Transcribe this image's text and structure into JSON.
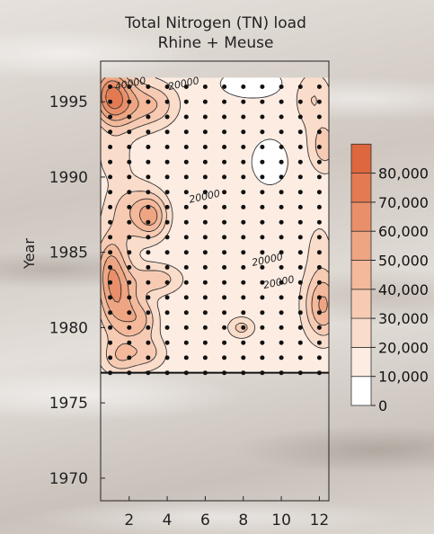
{
  "chart_data": {
    "type": "heatmap",
    "title": "Total Nitrogen (TN) load",
    "subtitle": "Rhine + Meuse",
    "xlabel": "",
    "ylabel": "Year",
    "x_ticks": [
      "2",
      "4",
      "6",
      "8",
      "10",
      "12"
    ],
    "y_ticks": [
      "1970",
      "1975",
      "1980",
      "1985",
      "1990",
      "1995"
    ],
    "xlim": [
      0.5,
      12.5
    ],
    "ylim": [
      1968.5,
      1997.7
    ],
    "data_ylim": [
      1977,
      1996.6
    ],
    "colorbar": {
      "ticks": [
        "0",
        "10,000",
        "20,000",
        "30,000",
        "40,000",
        "50,000",
        "60,000",
        "70,000",
        "80,000"
      ],
      "levels": [
        0,
        10000,
        20000,
        30000,
        40000,
        50000,
        60000,
        70000,
        80000,
        90000
      ],
      "colors": [
        "#ffffff",
        "#fcece2",
        "#fadccb",
        "#f7cbb3",
        "#f3b99a",
        "#eea582",
        "#e98f69",
        "#e47a52",
        "#de673e"
      ]
    },
    "contour_labels": [
      {
        "text": "40000",
        "x": 2.1,
        "y": 1996.0
      },
      {
        "text": "20000",
        "x": 4.9,
        "y": 1996.0
      },
      {
        "text": "20000",
        "x": 6.0,
        "y": 1988.5
      },
      {
        "text": "20000",
        "x": 9.3,
        "y": 1984.3
      },
      {
        "text": "20000",
        "x": 9.9,
        "y": 1982.8
      }
    ],
    "hotspots": [
      {
        "x": 1.0,
        "y": 1995.5,
        "v": 48000,
        "sx": 0.7,
        "sy": 1.4
      },
      {
        "x": 2.0,
        "y": 1994.8,
        "v": 30000,
        "sx": 1.0,
        "sy": 1.3
      },
      {
        "x": 3.6,
        "y": 1994.8,
        "v": 18000,
        "sx": 0.8,
        "sy": 1.0
      },
      {
        "x": 1.2,
        "y": 1991.3,
        "v": 14000,
        "sx": 0.6,
        "sy": 1.0
      },
      {
        "x": 2.0,
        "y": 1987.8,
        "v": 22000,
        "sx": 0.9,
        "sy": 1.5
      },
      {
        "x": 3.2,
        "y": 1987.4,
        "v": 36000,
        "sx": 0.6,
        "sy": 1.0
      },
      {
        "x": 1.0,
        "y": 1984.0,
        "v": 34000,
        "sx": 0.6,
        "sy": 1.6
      },
      {
        "x": 1.5,
        "y": 1981.5,
        "v": 38000,
        "sx": 0.8,
        "sy": 1.8
      },
      {
        "x": 3.5,
        "y": 1983.2,
        "v": 24000,
        "sx": 0.9,
        "sy": 0.7
      },
      {
        "x": 2.7,
        "y": 1980.5,
        "v": 22000,
        "sx": 0.6,
        "sy": 0.9
      },
      {
        "x": 3.0,
        "y": 1978.3,
        "v": 20000,
        "sx": 0.7,
        "sy": 0.8
      },
      {
        "x": 1.5,
        "y": 1978.0,
        "v": 22000,
        "sx": 0.7,
        "sy": 0.8
      },
      {
        "x": 7.9,
        "y": 1980.0,
        "v": 22000,
        "sx": 0.5,
        "sy": 0.5
      },
      {
        "x": 12.2,
        "y": 1981.5,
        "v": 40000,
        "sx": 0.7,
        "sy": 1.6
      },
      {
        "x": 11.7,
        "y": 1995.2,
        "v": 18000,
        "sx": 0.7,
        "sy": 1.3
      },
      {
        "x": 12.3,
        "y": 1992.0,
        "v": 24000,
        "sx": 0.6,
        "sy": 1.2
      },
      {
        "x": 12.0,
        "y": 1985.5,
        "v": 10000,
        "sx": 0.6,
        "sy": 1.5
      }
    ],
    "base_value": 12000,
    "low_spots": [
      {
        "x": 9.4,
        "y": 1991.0,
        "v": 12000,
        "sx": 0.5,
        "sy": 0.8
      },
      {
        "x": 8.5,
        "y": 1996.2,
        "v": 12000,
        "sx": 0.9,
        "sy": 0.5
      }
    ],
    "grid_points": {
      "months": [
        1,
        2,
        3,
        4,
        5,
        6,
        7,
        8,
        9,
        10,
        11,
        12
      ],
      "year_start": 1977,
      "year_end": 1996.6,
      "step": 1
    }
  }
}
